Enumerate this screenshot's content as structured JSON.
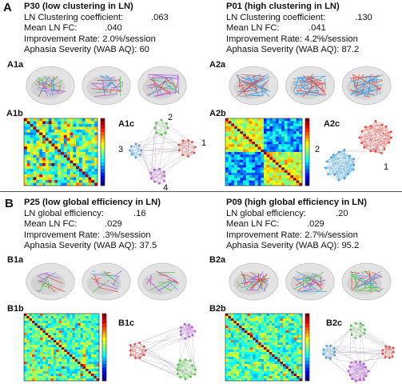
{
  "panelA": {
    "letter": "A",
    "left": {
      "title": "P30 (low clustering in LN)",
      "lines": [
        {
          "label": "LN Clustering coefficient:",
          "value": ".063"
        },
        {
          "label": "Mean LN FC:",
          "value": ".040"
        },
        {
          "label": "Improvement Rate:",
          "value": "2.0%/session"
        },
        {
          "label": "Aphasia Severity (WAB AQ):",
          "value": "60"
        }
      ],
      "sub_brain": "A1a",
      "sub_matrix": "A1b",
      "sub_graph": "A1c",
      "graph_labels": [
        "1",
        "2",
        "3",
        "4"
      ]
    },
    "right": {
      "title": "P01 (high clustering in LN)",
      "lines": [
        {
          "label": "LN Clustering coefficient:",
          "value": ".130"
        },
        {
          "label": "Mean LN FC:",
          "value": ".041"
        },
        {
          "label": "Improvement Rate:",
          "value": "4.2%/session"
        },
        {
          "label": "Aphasia Severity (WAB AQ):",
          "value": "87.2"
        }
      ],
      "sub_brain": "A2a",
      "sub_matrix": "A2b",
      "sub_graph": "A2c",
      "graph_labels": [
        "1",
        "2"
      ]
    }
  },
  "panelB": {
    "letter": "B",
    "left": {
      "title": "P25 (low global efficiency in  LN)",
      "lines": [
        {
          "label": "LN global efficiency:",
          "value": ".16"
        },
        {
          "label": "Mean LN FC:",
          "value": ".029"
        },
        {
          "label": "Improvement Rate:",
          "value": ".3%/session"
        },
        {
          "label": "Aphasia Severity (WAB AQ):",
          "value": "37.5"
        }
      ],
      "sub_brain": "B1a",
      "sub_matrix": "B1b",
      "sub_graph": "B1c"
    },
    "right": {
      "title": "P09 (high global efficiency in LN)",
      "lines": [
        {
          "label": "LN global efficiency:",
          "value": ".20"
        },
        {
          "label": "Mean LN FC:",
          "value": ".029"
        },
        {
          "label": "Improvement Rate:",
          "value": "2.7%/session"
        },
        {
          "label": "Aphasia Severity (WAB AQ):",
          "value": "95.2"
        }
      ],
      "sub_brain": "B2a",
      "sub_matrix": "B2b",
      "sub_graph": "B2c"
    }
  },
  "colors": {
    "module_red": "#e8463c",
    "module_green": "#53c24a",
    "module_blue": "#4aa3e0",
    "module_purple": "#b45ad8",
    "colormap_low": "#1a2a8c",
    "colormap_high": "#b01010"
  }
}
